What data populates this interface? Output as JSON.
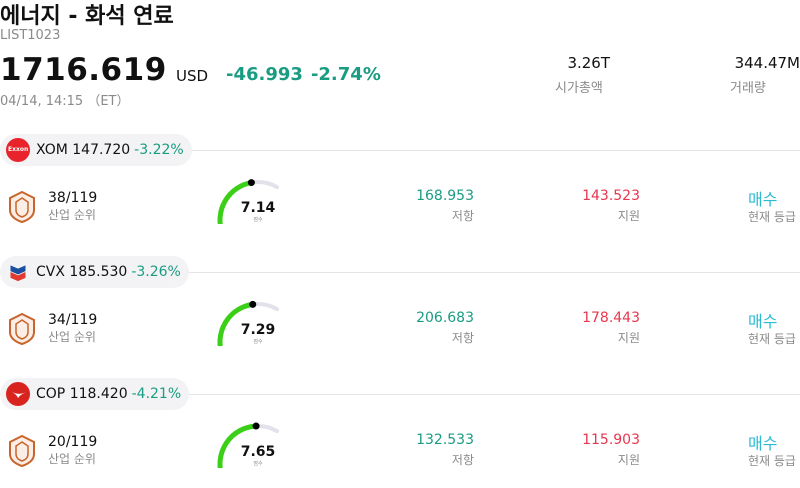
{
  "header": {
    "title": "에너지 - 화석 연료",
    "code": "LIST1023",
    "price": "1716.619",
    "currency": "USD",
    "change_abs": "-46.993",
    "change_pct": "-2.74%",
    "timestamp": "04/14, 14:15 （ET）"
  },
  "stats": {
    "market_cap_value": "3.26T",
    "market_cap_label": "시가총액",
    "volume_value": "344.47M",
    "volume_label": "거래량"
  },
  "labels": {
    "rank": "산업 순위",
    "score": "점수",
    "resistance": "저항",
    "support": "지원",
    "signal": "현재 등급"
  },
  "colors": {
    "up": "#1a9c82",
    "down": "#e8364e",
    "signal": "#2bbbd3",
    "gauge_fill": "#3ccf18",
    "gauge_track": "#e2e2ea"
  },
  "stocks": [
    {
      "ticker": "XOM",
      "price": "147.720",
      "change_pct": "-3.22%",
      "logo": "exxonmobil-logo",
      "logo_text": "Exxon Mobil",
      "rank": "38/119",
      "score": "7.14",
      "score_value": 7.14,
      "resistance": "168.953",
      "support": "143.523",
      "signal": "매수"
    },
    {
      "ticker": "CVX",
      "price": "185.530",
      "change_pct": "-3.26%",
      "logo": "chevron-logo",
      "rank": "34/119",
      "score": "7.29",
      "score_value": 7.29,
      "resistance": "206.683",
      "support": "178.443",
      "signal": "매수"
    },
    {
      "ticker": "COP",
      "price": "118.420",
      "change_pct": "-4.21%",
      "logo": "conocophillips-logo",
      "rank": "20/119",
      "score": "7.65",
      "score_value": 7.65,
      "resistance": "132.533",
      "support": "115.903",
      "signal": "매수"
    }
  ]
}
